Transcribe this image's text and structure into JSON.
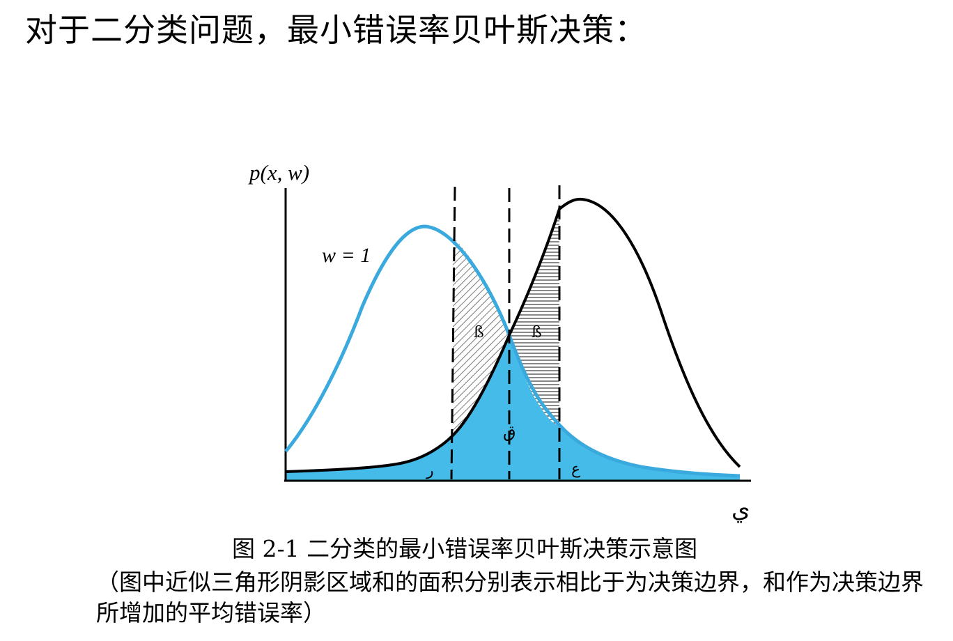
{
  "heading": "对于二分类问题，最小错误率贝叶斯决策：",
  "figure": {
    "y_axis_label": "p(x, w)",
    "curve_label": "w = 1",
    "x_axis_label": "ي",
    "region_marks": {
      "left_tail": "ر",
      "center_bottom": "ق",
      "right_tail": "ع",
      "hatch_left": "ß",
      "hatch_right": "ß"
    }
  },
  "caption": "图 2-1  二分类的最小错误率贝叶斯决策示意图",
  "note": "（图中近似三角形阴影区域和的面积分别表示相比于为决策边界，和作为决策边界所增加的平均错误率）",
  "colors": {
    "curve_blue": "#3aa9dd",
    "fill_blue": "#45bbea",
    "curve_black": "#000000",
    "hatch": "#555555"
  }
}
